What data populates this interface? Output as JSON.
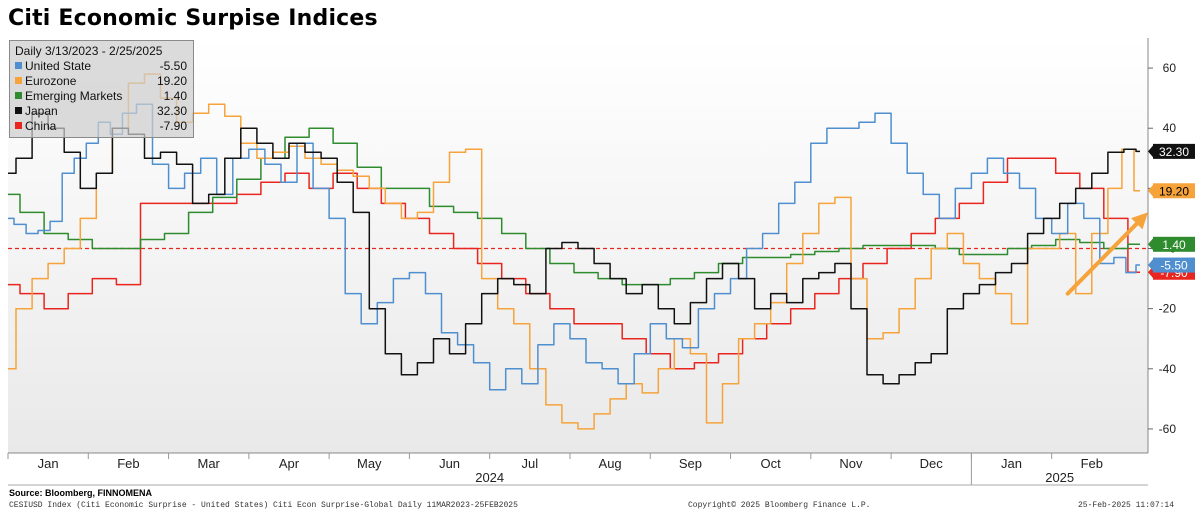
{
  "title": "Citi Economic Surpise Indices",
  "legend": {
    "header": "Daily 3/13/2023 - 2/25/2025",
    "items": [
      {
        "label": "United State",
        "value": "-5.50",
        "color": "#4f8fd0"
      },
      {
        "label": "Eurozone",
        "value": "19.20",
        "color": "#f5a33a"
      },
      {
        "label": "Emerging Markets",
        "value": "1.40",
        "color": "#2e8b2e"
      },
      {
        "label": "Japan",
        "value": "32.30",
        "color": "#111111"
      },
      {
        "label": "China",
        "value": "-7.90",
        "color": "#e8261f"
      }
    ]
  },
  "chart_data": {
    "type": "line",
    "title": "Citi Economic Surpise Indices",
    "x_axis": {
      "months": [
        "Jan",
        "Feb",
        "Mar",
        "Apr",
        "May",
        "Jun",
        "Jul",
        "Aug",
        "Sep",
        "Oct",
        "Nov",
        "Dec",
        "Jan",
        "Feb"
      ],
      "years": [
        "2024",
        "2025"
      ]
    },
    "y_axis": {
      "position": "right",
      "ticks": [
        60,
        40,
        20,
        0,
        -20,
        -40,
        -60
      ],
      "ylim": [
        -68,
        70
      ]
    },
    "reference_line": {
      "y": 0,
      "style": "dashed",
      "color": "#e8261f"
    },
    "x_domain": [
      0,
      14.2
    ],
    "series": [
      {
        "name": "United State",
        "color": "#4f8fd0",
        "last_value": -5.5,
        "x": [
          0,
          0.15,
          0.3,
          0.45,
          0.6,
          0.75,
          0.9,
          1.05,
          1.2,
          1.35,
          1.5,
          1.7,
          1.9,
          2.1,
          2.3,
          2.5,
          2.7,
          2.9,
          3.1,
          3.3,
          3.5,
          3.7,
          3.9,
          4.1,
          4.3,
          4.5,
          4.7,
          4.9,
          5.1,
          5.3,
          5.5,
          5.7,
          5.9,
          6.1,
          6.3,
          6.5,
          6.7,
          6.9,
          7.1,
          7.3,
          7.5,
          7.7,
          7.9,
          8.1,
          8.3,
          8.5,
          8.7,
          8.9,
          9.1,
          9.3,
          9.5,
          9.7,
          9.9,
          10.1,
          10.3,
          10.5,
          10.7,
          10.9,
          11.1,
          11.3,
          11.5,
          11.7,
          11.9,
          12.1,
          12.3,
          12.5,
          12.7,
          12.9,
          13.1,
          13.3,
          13.5,
          13.7,
          13.85,
          14.0,
          14.1
        ],
        "values": [
          10,
          8,
          5,
          6,
          9,
          25,
          30,
          35,
          42,
          38,
          45,
          48,
          28,
          20,
          25,
          30,
          18,
          30,
          33,
          28,
          22,
          35,
          20,
          10,
          -15,
          -25,
          -18,
          -10,
          -8,
          -15,
          -28,
          -32,
          -38,
          -47,
          -40,
          -45,
          -32,
          -25,
          -30,
          -38,
          -40,
          -45,
          -35,
          -25,
          -30,
          -33,
          -20,
          -15,
          -10,
          0,
          5,
          15,
          22,
          35,
          40,
          40,
          42,
          45,
          35,
          25,
          18,
          10,
          20,
          25,
          30,
          25,
          20,
          10,
          5,
          15,
          10,
          -5,
          -3,
          -8,
          -5.5
        ]
      },
      {
        "name": "Eurozone",
        "color": "#f5a33a",
        "last_value": 19.2,
        "x": [
          0,
          0.2,
          0.4,
          0.6,
          0.8,
          1.0,
          1.2,
          1.4,
          1.6,
          1.8,
          2.0,
          2.2,
          2.4,
          2.6,
          2.8,
          3.0,
          3.2,
          3.4,
          3.6,
          3.8,
          4.0,
          4.2,
          4.4,
          4.6,
          4.8,
          5.0,
          5.2,
          5.4,
          5.6,
          5.8,
          6.0,
          6.2,
          6.4,
          6.6,
          6.8,
          7.0,
          7.2,
          7.4,
          7.6,
          7.8,
          8.0,
          8.2,
          8.4,
          8.6,
          8.8,
          9.0,
          9.2,
          9.4,
          9.6,
          9.8,
          10.0,
          10.2,
          10.4,
          10.6,
          10.8,
          11.0,
          11.2,
          11.4,
          11.6,
          11.8,
          12.0,
          12.2,
          12.4,
          12.6,
          12.8,
          13.0,
          13.2,
          13.4,
          13.6,
          13.8,
          13.95,
          14.1
        ],
        "values": [
          -40,
          -20,
          -10,
          -5,
          0,
          10,
          25,
          40,
          55,
          58,
          50,
          42,
          45,
          48,
          44,
          35,
          30,
          32,
          34,
          30,
          28,
          26,
          24,
          20,
          15,
          10,
          12,
          22,
          32,
          33,
          -10,
          -20,
          -25,
          -40,
          -52,
          -58,
          -60,
          -55,
          -50,
          -45,
          -48,
          -40,
          -30,
          -35,
          -58,
          -45,
          -30,
          -25,
          -18,
          -5,
          5,
          15,
          17,
          -10,
          -30,
          -28,
          -20,
          -10,
          0,
          5,
          -5,
          -10,
          -15,
          -25,
          0,
          0,
          5,
          -15,
          5,
          20,
          33,
          19.2
        ]
      },
      {
        "name": "Emerging Markets",
        "color": "#2e8b2e",
        "last_value": 1.4,
        "x": [
          0,
          0.3,
          0.6,
          0.9,
          1.2,
          1.5,
          1.8,
          2.1,
          2.4,
          2.7,
          3.0,
          3.3,
          3.6,
          3.9,
          4.2,
          4.5,
          4.8,
          5.1,
          5.4,
          5.7,
          6.0,
          6.3,
          6.6,
          6.9,
          7.2,
          7.5,
          7.8,
          8.1,
          8.4,
          8.7,
          9.0,
          9.3,
          9.6,
          9.9,
          10.2,
          10.5,
          10.8,
          11.1,
          11.4,
          11.7,
          12.0,
          12.3,
          12.6,
          12.9,
          13.2,
          13.5,
          13.8,
          14.1
        ],
        "values": [
          18,
          12,
          5,
          3,
          0,
          0,
          3,
          5,
          12,
          17,
          23,
          30,
          37,
          40,
          35,
          27,
          20,
          20,
          14,
          12,
          10,
          5,
          0,
          -5,
          -8,
          -10,
          -12,
          -12,
          -10,
          -8,
          -5,
          -3,
          -3,
          -2,
          -1,
          0,
          1,
          1,
          1,
          0,
          -2,
          -2,
          0,
          1,
          3,
          2,
          0,
          1.4
        ]
      },
      {
        "name": "Japan",
        "color": "#111111",
        "last_value": 32.3,
        "x": [
          0,
          0.2,
          0.4,
          0.6,
          0.8,
          1.0,
          1.2,
          1.4,
          1.6,
          1.8,
          2.0,
          2.2,
          2.4,
          2.6,
          2.8,
          3.0,
          3.2,
          3.4,
          3.6,
          3.8,
          4.0,
          4.2,
          4.4,
          4.6,
          4.8,
          5.0,
          5.2,
          5.4,
          5.6,
          5.8,
          6.0,
          6.2,
          6.4,
          6.6,
          6.8,
          7.0,
          7.2,
          7.4,
          7.6,
          7.8,
          8.0,
          8.2,
          8.4,
          8.6,
          8.8,
          9.0,
          9.2,
          9.4,
          9.6,
          9.8,
          10.0,
          10.2,
          10.4,
          10.6,
          10.8,
          11.0,
          11.2,
          11.4,
          11.6,
          11.8,
          12.0,
          12.2,
          12.4,
          12.6,
          12.8,
          13.0,
          13.2,
          13.4,
          13.6,
          13.8,
          14.0,
          14.1
        ],
        "values": [
          25,
          30,
          45,
          40,
          32,
          20,
          25,
          40,
          38,
          30,
          32,
          28,
          15,
          18,
          30,
          40,
          35,
          30,
          35,
          32,
          30,
          22,
          12,
          -20,
          -35,
          -42,
          -38,
          -30,
          -35,
          -25,
          -15,
          -10,
          -12,
          -15,
          0,
          2,
          0,
          -5,
          -10,
          -15,
          -12,
          -20,
          -25,
          -18,
          -10,
          -5,
          -10,
          -20,
          -15,
          -18,
          -10,
          -8,
          -5,
          -20,
          -42,
          -45,
          -42,
          -38,
          -35,
          -20,
          -15,
          -12,
          -8,
          -5,
          5,
          10,
          15,
          20,
          25,
          32,
          33,
          32.3
        ]
      },
      {
        "name": "China",
        "color": "#e8261f",
        "last_value": -7.9,
        "x": [
          0,
          0.3,
          0.6,
          0.9,
          1.2,
          1.5,
          1.8,
          2.1,
          2.4,
          2.7,
          3.0,
          3.3,
          3.6,
          3.9,
          4.2,
          4.5,
          4.8,
          5.1,
          5.4,
          5.7,
          6.0,
          6.3,
          6.6,
          6.9,
          7.2,
          7.5,
          7.8,
          8.1,
          8.4,
          8.7,
          9.0,
          9.3,
          9.6,
          9.9,
          10.2,
          10.5,
          10.8,
          11.1,
          11.4,
          11.7,
          12.0,
          12.3,
          12.6,
          12.9,
          13.2,
          13.5,
          13.8,
          14.1
        ],
        "values": [
          -12,
          -15,
          -20,
          -15,
          -10,
          -12,
          15,
          15,
          15,
          15,
          18,
          22,
          25,
          20,
          25,
          20,
          15,
          10,
          5,
          0,
          -5,
          -10,
          -15,
          -20,
          -25,
          -25,
          -30,
          -35,
          -40,
          -38,
          -35,
          -30,
          -25,
          -20,
          -15,
          -10,
          -5,
          0,
          5,
          10,
          15,
          22,
          30,
          30,
          25,
          20,
          10,
          -7.9
        ]
      }
    ],
    "right_labels": [
      {
        "text": "32.30",
        "value": 32.3,
        "bg": "#111111",
        "fg": "#ffffff"
      },
      {
        "text": "19.20",
        "value": 19.2,
        "bg": "#f5a33a",
        "fg": "#000000"
      },
      {
        "text": "1.40",
        "value": 1.4,
        "bg": "#2e8b2e",
        "fg": "#ffffff"
      },
      {
        "text": "-7.90",
        "value": -7.9,
        "bg": "#e8261f",
        "fg": "#ffffff"
      },
      {
        "text": "-5.50",
        "value": -5.5,
        "bg": "#4f8fd0",
        "fg": "#ffffff"
      }
    ],
    "annotation": {
      "type": "arrow",
      "color": "#f5a33a",
      "from": {
        "x": 13.2,
        "y": -15
      },
      "to": {
        "x": 14.2,
        "y": 12
      }
    },
    "grid": false,
    "legend_placement": "top-left"
  },
  "footer": {
    "source": "Source: Bloomberg, FINNOMENA",
    "index": "CESIUSD Index (Citi Economic Surprise - United States) Citi Econ Surprise-Global Daily 11MAR2023-25FEB2025",
    "copyright": "Copyright© 2025 Bloomberg Finance L.P.",
    "timestamp": "25-Feb-2025 11:07:14"
  }
}
